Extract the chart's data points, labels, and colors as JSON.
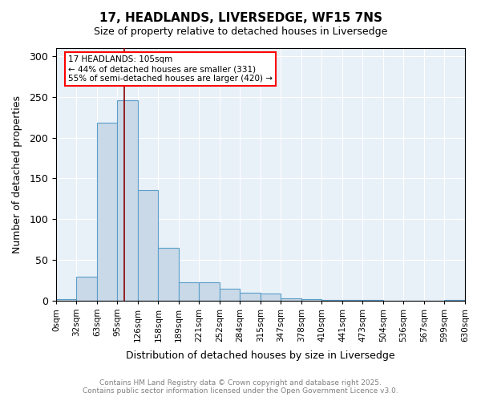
{
  "title_line1": "17, HEADLANDS, LIVERSEDGE, WF15 7NS",
  "title_line2": "Size of property relative to detached houses in Liversedge",
  "xlabel": "Distribution of detached houses by size in Liversedge",
  "ylabel": "Number of detached properties",
  "bin_labels": [
    "0sqm",
    "32sqm",
    "63sqm",
    "95sqm",
    "126sqm",
    "158sqm",
    "189sqm",
    "221sqm",
    "252sqm",
    "284sqm",
    "315sqm",
    "347sqm",
    "378sqm",
    "410sqm",
    "441sqm",
    "473sqm",
    "504sqm",
    "536sqm",
    "567sqm",
    "599sqm",
    "630sqm"
  ],
  "bar_values": [
    2,
    29,
    218,
    246,
    136,
    65,
    22,
    22,
    15,
    10,
    9,
    3,
    2,
    1,
    1,
    1,
    0,
    0,
    0,
    1
  ],
  "bar_color": "#c9d9e8",
  "bar_edge_color": "#5a9ec9",
  "annotation_title": "17 HEADLANDS: 105sqm",
  "annotation_line1": "← 44% of detached houses are smaller (331)",
  "annotation_line2": "55% of semi-detached houses are larger (420) →",
  "ylim": [
    0,
    310
  ],
  "yticks": [
    0,
    50,
    100,
    150,
    200,
    250,
    300
  ],
  "background_color": "#e8f0f8",
  "footnote_line1": "Contains HM Land Registry data © Crown copyright and database right 2025.",
  "footnote_line2": "Contains public sector information licensed under the Open Government Licence v3.0."
}
